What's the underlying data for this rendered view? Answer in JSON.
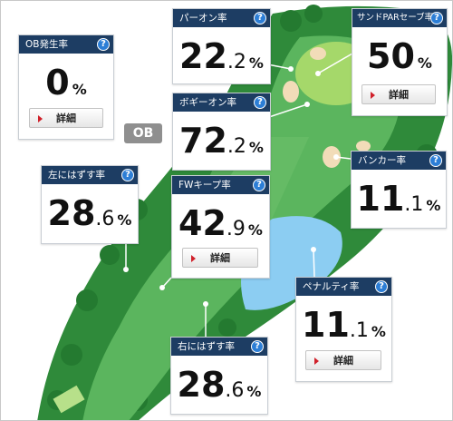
{
  "ob_label": "OB",
  "detail_label": "詳細",
  "help_glyph": "?",
  "colors": {
    "header": "#1d3d63",
    "help": "#2c7ed6",
    "fairway": "#5bb55e",
    "rough": "#2f8a3a",
    "water": "#8ccdf2",
    "bunker": "#f2dcb8",
    "green": "#a5d86a",
    "detail_arrow": "#d0202a"
  },
  "cards": {
    "ob": {
      "title": "OB発生率",
      "int": "0",
      "dec": "",
      "pct": "%"
    },
    "par_on": {
      "title": "パーオン率",
      "int": "22",
      "dec": ".2",
      "pct": "%"
    },
    "sand_save": {
      "title": "サンドPARセーブ率",
      "int": "50",
      "dec": "",
      "pct": "%"
    },
    "bogey_on": {
      "title": "ボギーオン率",
      "int": "72",
      "dec": ".2",
      "pct": "%"
    },
    "bunker": {
      "title": "バンカー率",
      "int": "11",
      "dec": ".1",
      "pct": "%"
    },
    "left_miss": {
      "title": "左にはずす率",
      "int": "28",
      "dec": ".6",
      "pct": "%"
    },
    "fw_keep": {
      "title": "FWキープ率",
      "int": "42",
      "dec": ".9",
      "pct": "%"
    },
    "penalty": {
      "title": "ペナルティ率",
      "int": "11",
      "dec": ".1",
      "pct": "%"
    },
    "right_miss": {
      "title": "右にはずす率",
      "int": "28",
      "dec": ".6",
      "pct": "%"
    }
  }
}
